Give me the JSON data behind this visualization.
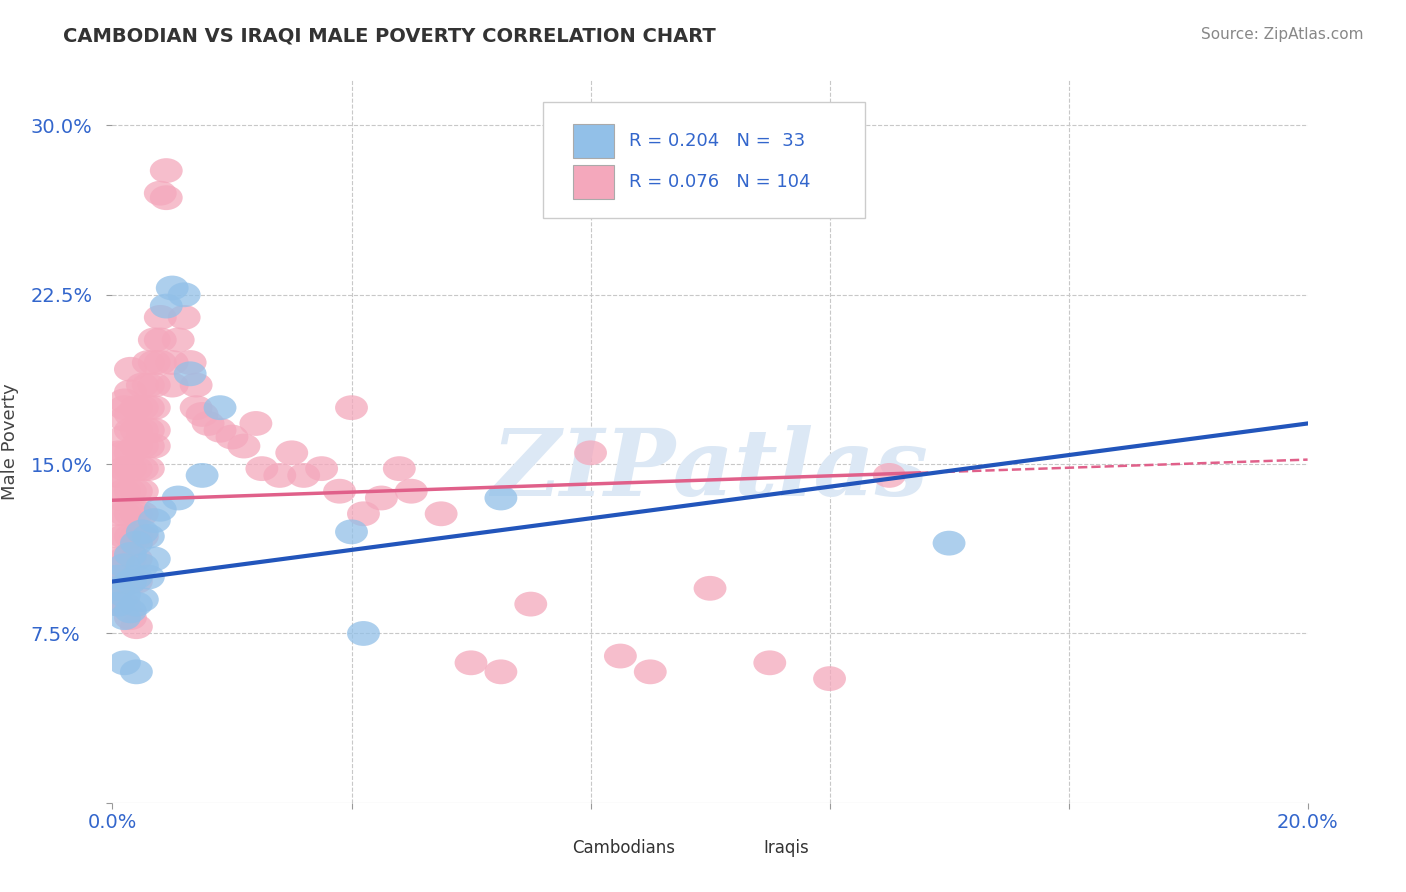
{
  "title": "CAMBODIAN VS IRAQI MALE POVERTY CORRELATION CHART",
  "source": "Source: ZipAtlas.com",
  "ylabel": "Male Poverty",
  "xlim": [
    0.0,
    0.2
  ],
  "ylim": [
    0.0,
    0.32
  ],
  "xticks": [
    0.0,
    0.04,
    0.08,
    0.12,
    0.16,
    0.2
  ],
  "xtick_labels": [
    "0.0%",
    "",
    "",
    "",
    "",
    "20.0%"
  ],
  "yticks": [
    0.0,
    0.075,
    0.15,
    0.225,
    0.3
  ],
  "ytick_labels": [
    "",
    "7.5%",
    "15.0%",
    "22.5%",
    "30.0%"
  ],
  "background_color": "#ffffff",
  "grid_color": "#c8c8c8",
  "cambodian_color": "#92c0e8",
  "iraqi_color": "#f4a8bc",
  "cambodian_line_color": "#2255bb",
  "iraqi_line_color": "#e0608a",
  "R_cambodian": 0.204,
  "N_cambodian": 33,
  "R_iraqi": 0.076,
  "N_iraqi": 104,
  "watermark_text": "ZIPatlas",
  "watermark_color": "#dce8f5",
  "cambodian_points": [
    [
      0.001,
      0.1
    ],
    [
      0.001,
      0.095
    ],
    [
      0.001,
      0.088
    ],
    [
      0.002,
      0.105
    ],
    [
      0.002,
      0.092
    ],
    [
      0.002,
      0.082
    ],
    [
      0.003,
      0.11
    ],
    [
      0.003,
      0.098
    ],
    [
      0.003,
      0.085
    ],
    [
      0.004,
      0.115
    ],
    [
      0.004,
      0.1
    ],
    [
      0.004,
      0.088
    ],
    [
      0.005,
      0.12
    ],
    [
      0.005,
      0.105
    ],
    [
      0.005,
      0.09
    ],
    [
      0.006,
      0.118
    ],
    [
      0.006,
      0.1
    ],
    [
      0.007,
      0.125
    ],
    [
      0.007,
      0.108
    ],
    [
      0.008,
      0.13
    ],
    [
      0.009,
      0.22
    ],
    [
      0.01,
      0.228
    ],
    [
      0.011,
      0.135
    ],
    [
      0.012,
      0.225
    ],
    [
      0.013,
      0.19
    ],
    [
      0.015,
      0.145
    ],
    [
      0.018,
      0.175
    ],
    [
      0.04,
      0.12
    ],
    [
      0.042,
      0.075
    ],
    [
      0.065,
      0.135
    ],
    [
      0.14,
      0.115
    ],
    [
      0.002,
      0.062
    ],
    [
      0.004,
      0.058
    ]
  ],
  "iraqi_points": [
    [
      0.001,
      0.145
    ],
    [
      0.001,
      0.135
    ],
    [
      0.001,
      0.128
    ],
    [
      0.001,
      0.118
    ],
    [
      0.001,
      0.108
    ],
    [
      0.001,
      0.098
    ],
    [
      0.001,
      0.088
    ],
    [
      0.001,
      0.145
    ],
    [
      0.001,
      0.155
    ],
    [
      0.002,
      0.155
    ],
    [
      0.002,
      0.148
    ],
    [
      0.002,
      0.138
    ],
    [
      0.002,
      0.128
    ],
    [
      0.002,
      0.118
    ],
    [
      0.002,
      0.108
    ],
    [
      0.002,
      0.098
    ],
    [
      0.002,
      0.162
    ],
    [
      0.002,
      0.17
    ],
    [
      0.002,
      0.175
    ],
    [
      0.002,
      0.178
    ],
    [
      0.003,
      0.165
    ],
    [
      0.003,
      0.155
    ],
    [
      0.003,
      0.148
    ],
    [
      0.003,
      0.138
    ],
    [
      0.003,
      0.128
    ],
    [
      0.003,
      0.118
    ],
    [
      0.003,
      0.108
    ],
    [
      0.003,
      0.098
    ],
    [
      0.003,
      0.172
    ],
    [
      0.003,
      0.182
    ],
    [
      0.003,
      0.192
    ],
    [
      0.004,
      0.175
    ],
    [
      0.004,
      0.165
    ],
    [
      0.004,
      0.158
    ],
    [
      0.004,
      0.148
    ],
    [
      0.004,
      0.138
    ],
    [
      0.004,
      0.128
    ],
    [
      0.004,
      0.118
    ],
    [
      0.004,
      0.108
    ],
    [
      0.004,
      0.098
    ],
    [
      0.005,
      0.185
    ],
    [
      0.005,
      0.175
    ],
    [
      0.005,
      0.165
    ],
    [
      0.005,
      0.158
    ],
    [
      0.005,
      0.148
    ],
    [
      0.005,
      0.138
    ],
    [
      0.005,
      0.128
    ],
    [
      0.005,
      0.118
    ],
    [
      0.006,
      0.195
    ],
    [
      0.006,
      0.185
    ],
    [
      0.006,
      0.175
    ],
    [
      0.006,
      0.165
    ],
    [
      0.006,
      0.158
    ],
    [
      0.006,
      0.148
    ],
    [
      0.007,
      0.205
    ],
    [
      0.007,
      0.195
    ],
    [
      0.007,
      0.185
    ],
    [
      0.007,
      0.175
    ],
    [
      0.007,
      0.165
    ],
    [
      0.007,
      0.158
    ],
    [
      0.008,
      0.215
    ],
    [
      0.008,
      0.205
    ],
    [
      0.008,
      0.195
    ],
    [
      0.008,
      0.27
    ],
    [
      0.009,
      0.28
    ],
    [
      0.009,
      0.268
    ],
    [
      0.01,
      0.185
    ],
    [
      0.01,
      0.195
    ],
    [
      0.011,
      0.205
    ],
    [
      0.012,
      0.215
    ],
    [
      0.013,
      0.195
    ],
    [
      0.014,
      0.185
    ],
    [
      0.014,
      0.175
    ],
    [
      0.015,
      0.172
    ],
    [
      0.016,
      0.168
    ],
    [
      0.018,
      0.165
    ],
    [
      0.02,
      0.162
    ],
    [
      0.022,
      0.158
    ],
    [
      0.024,
      0.168
    ],
    [
      0.025,
      0.148
    ],
    [
      0.028,
      0.145
    ],
    [
      0.03,
      0.155
    ],
    [
      0.032,
      0.145
    ],
    [
      0.035,
      0.148
    ],
    [
      0.038,
      0.138
    ],
    [
      0.04,
      0.175
    ],
    [
      0.042,
      0.128
    ],
    [
      0.045,
      0.135
    ],
    [
      0.048,
      0.148
    ],
    [
      0.05,
      0.138
    ],
    [
      0.055,
      0.128
    ],
    [
      0.06,
      0.062
    ],
    [
      0.065,
      0.058
    ],
    [
      0.07,
      0.088
    ],
    [
      0.08,
      0.155
    ],
    [
      0.085,
      0.065
    ],
    [
      0.09,
      0.058
    ],
    [
      0.1,
      0.095
    ],
    [
      0.11,
      0.062
    ],
    [
      0.12,
      0.055
    ],
    [
      0.13,
      0.145
    ],
    [
      0.002,
      0.088
    ],
    [
      0.003,
      0.082
    ],
    [
      0.004,
      0.078
    ]
  ]
}
